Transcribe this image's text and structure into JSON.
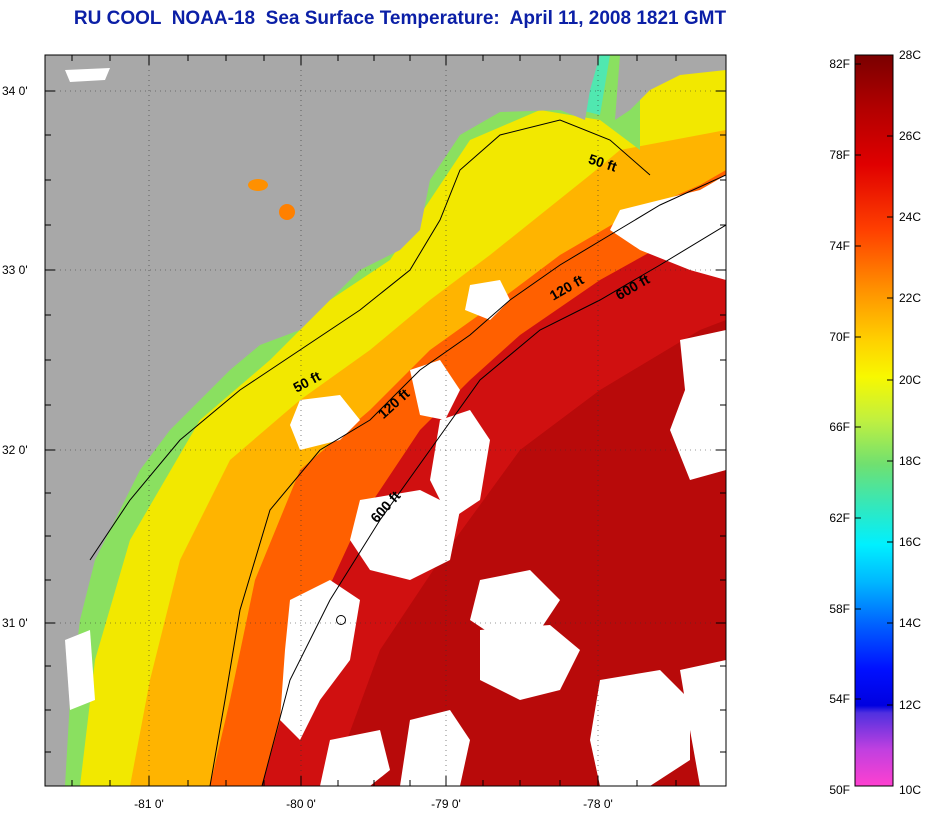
{
  "title": "RU COOL  NOAA-18  Sea Surface Temperature:  April 11, 2008 1821 GMT",
  "map": {
    "x_ticks": [
      "-81 0'",
      "-80 0'",
      "-79 0'",
      "-78 0'"
    ],
    "y_ticks": [
      "34 0'",
      "33 0'",
      "32 0'",
      "31 0'"
    ],
    "contour_labels": {
      "north_50": "50 ft",
      "south_50": "50 ft",
      "north_120": "120 ft",
      "south_120": "120 ft",
      "north_600": "600 ft",
      "south_600": "600 ft"
    },
    "colors": {
      "land": "#a8a8a8",
      "cloud": "#ffffff",
      "warm": "#d81010",
      "hot": "#c00c0c",
      "orange": "#ff5a00",
      "yellow": "#f0f000",
      "green": "#6ee070",
      "cyan": "#40e8d0"
    }
  },
  "colorbar": {
    "fahrenheit": [
      "82F",
      "78F",
      "74F",
      "70F",
      "66F",
      "62F",
      "58F",
      "54F",
      "50F"
    ],
    "celsius": [
      "28C",
      "26C",
      "24C",
      "22C",
      "20C",
      "18C",
      "16C",
      "14C",
      "12C",
      "10C"
    ]
  }
}
